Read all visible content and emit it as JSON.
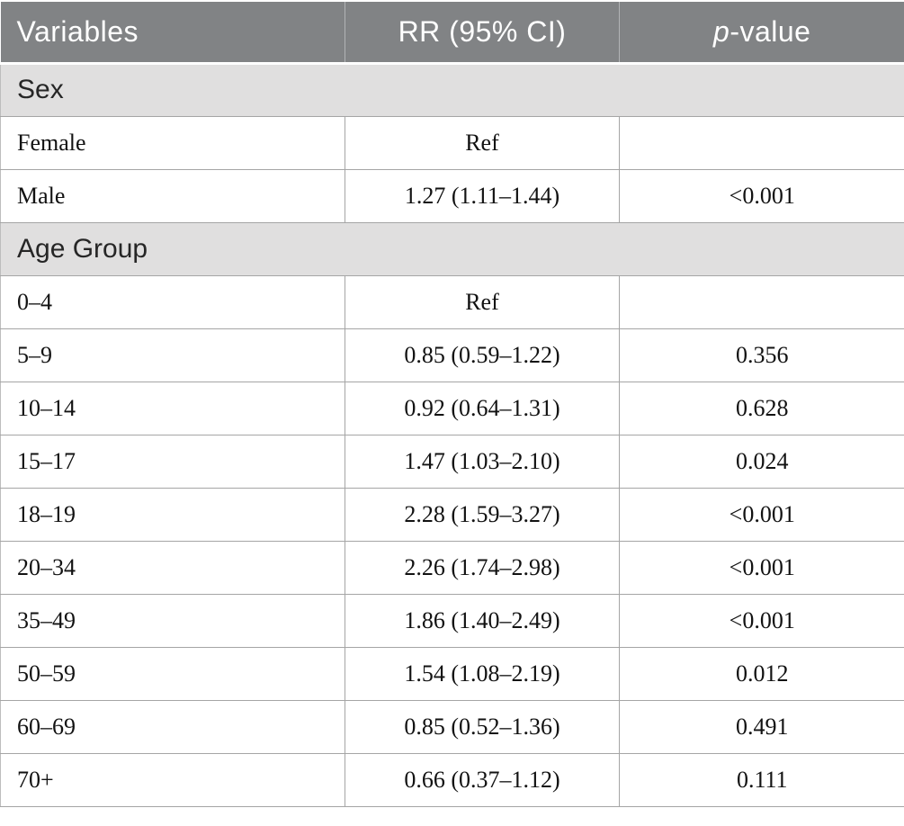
{
  "table": {
    "header": {
      "variables": "Variables",
      "rr": "RR (95% CI)",
      "p_italic": "p",
      "p_rest": "-value"
    },
    "colors": {
      "header_bg": "#818385",
      "header_text": "#ffffff",
      "section_bg": "#e0dfdf",
      "border": "#a5a5a5"
    },
    "sections": [
      {
        "title": "Sex",
        "rows": [
          {
            "variable": "Female",
            "rr": "Ref",
            "p": ""
          },
          {
            "variable": "Male",
            "rr": "1.27 (1.11–1.44)",
            "p": "<0.001"
          }
        ]
      },
      {
        "title": "Age Group",
        "rows": [
          {
            "variable": "0–4",
            "rr": "Ref",
            "p": ""
          },
          {
            "variable": "5–9",
            "rr": "0.85 (0.59–1.22)",
            "p": "0.356"
          },
          {
            "variable": "10–14",
            "rr": "0.92 (0.64–1.31)",
            "p": "0.628"
          },
          {
            "variable": "15–17",
            "rr": "1.47 (1.03–2.10)",
            "p": "0.024"
          },
          {
            "variable": "18–19",
            "rr": "2.28 (1.59–3.27)",
            "p": "<0.001"
          },
          {
            "variable": "20–34",
            "rr": "2.26 (1.74–2.98)",
            "p": "<0.001"
          },
          {
            "variable": "35–49",
            "rr": "1.86 (1.40–2.49)",
            "p": "<0.001"
          },
          {
            "variable": "50–59",
            "rr": "1.54 (1.08–2.19)",
            "p": "0.012"
          },
          {
            "variable": "60–69",
            "rr": "0.85 (0.52–1.36)",
            "p": "0.491"
          },
          {
            "variable": "70+",
            "rr": "0.66 (0.37–1.12)",
            "p": "0.111"
          }
        ]
      }
    ]
  }
}
